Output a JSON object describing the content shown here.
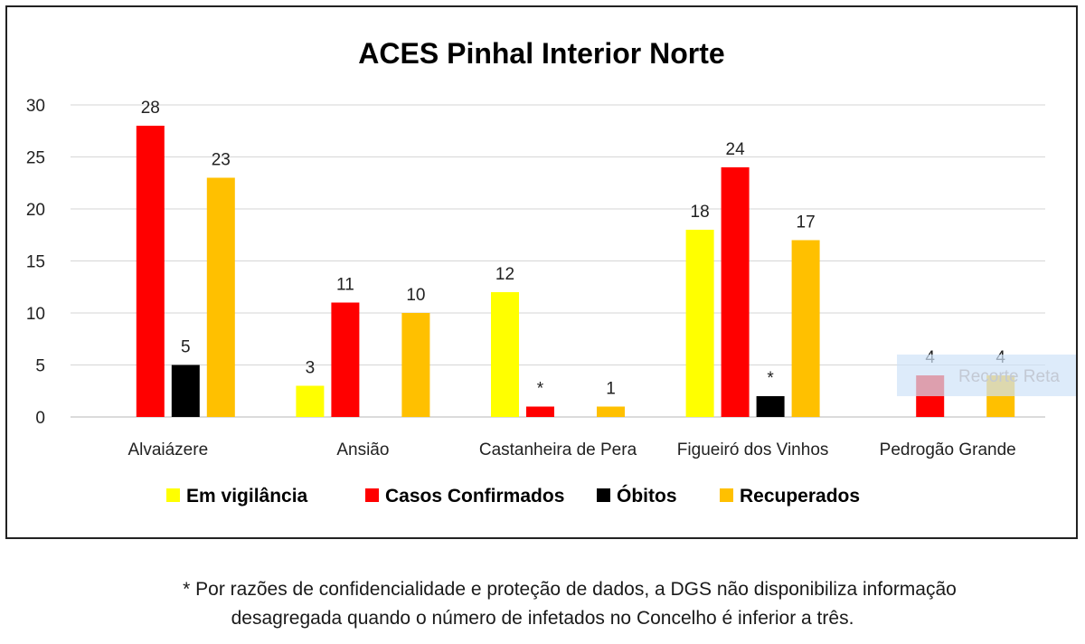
{
  "chart_data": {
    "type": "bar",
    "title": "ACES Pinhal Interior Norte",
    "xlabel": "",
    "ylabel": "",
    "ylim": [
      0,
      30
    ],
    "yticks": [
      0,
      5,
      10,
      15,
      20,
      25,
      30
    ],
    "grid": true,
    "legend_position": "bottom",
    "categories": [
      "Alvaiázere",
      "Ansião",
      "Castanheira de Pera",
      "Figueiró dos Vinhos",
      "Pedrogão Grande"
    ],
    "series": [
      {
        "name": "Em vigilância",
        "color": "#ffff00",
        "values": [
          null,
          3,
          12,
          18,
          null
        ],
        "labels": [
          "",
          "3",
          "12",
          "18",
          ""
        ]
      },
      {
        "name": "Casos Confirmados",
        "color": "#ff0000",
        "values": [
          28,
          11,
          1,
          24,
          4
        ],
        "labels": [
          "28",
          "11",
          "*",
          "24",
          "4"
        ]
      },
      {
        "name": "Óbitos",
        "color": "#000000",
        "values": [
          5,
          null,
          null,
          2,
          null
        ],
        "labels": [
          "5",
          "",
          "",
          "*",
          ""
        ]
      },
      {
        "name": "Recuperados",
        "color": "#ffc000",
        "values": [
          23,
          10,
          1,
          17,
          4
        ],
        "labels": [
          "23",
          "10",
          "1",
          "17",
          "4"
        ]
      }
    ]
  },
  "watermark": "Recorte Reta",
  "footnote": {
    "line1": "* Por razões de confidencialidade e proteção de dados, a DGS não disponibiliza informação",
    "line2": "desagregada quando o número de infetados no Concelho é inferior a três."
  }
}
